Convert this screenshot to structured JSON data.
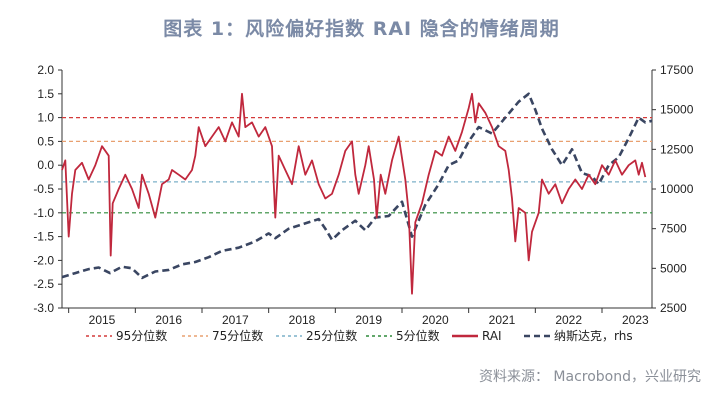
{
  "title": "图表 1：风险偏好指数 RAI 隐含的情绪周期",
  "source": "资料来源： Macrobond，兴业研究",
  "colors": {
    "rai": "#c0283d",
    "nasdaq": "#3a4662",
    "p95": "#d43a3a",
    "p75": "#e8a070",
    "p25": "#7cb0c8",
    "p5": "#2f8a3a",
    "axis": "#333333"
  },
  "chart_data": {
    "type": "line",
    "x_labels": [
      "2015",
      "2016",
      "2017",
      "2018",
      "2019",
      "2020",
      "2021",
      "2022",
      "2023"
    ],
    "x_range": [
      2014.9,
      2023.75
    ],
    "y_left": {
      "ticks": [
        "2.0",
        "1.5",
        "1.0",
        "0.5",
        "0.0",
        "-0.5",
        "-1.0",
        "-1.5",
        "-2.0",
        "-2.5",
        "-3.0"
      ],
      "range": [
        -3.0,
        2.0
      ]
    },
    "y_right": {
      "ticks": [
        "17500",
        "15000",
        "12500",
        "10000",
        "7500",
        "5000",
        "2500"
      ],
      "range": [
        2500,
        17500
      ]
    },
    "reference_lines": [
      {
        "name": "95分位数",
        "value": 1.0,
        "color_key": "p95"
      },
      {
        "name": "75分位数",
        "value": 0.5,
        "color_key": "p75"
      },
      {
        "name": "25分位数",
        "value": -0.35,
        "color_key": "p25"
      },
      {
        "name": "5分位数",
        "value": -1.0,
        "color_key": "p5"
      }
    ],
    "series": [
      {
        "name": "RAI",
        "axis": "left",
        "points": [
          [
            2014.9,
            -0.1
          ],
          [
            2014.95,
            0.1
          ],
          [
            2015.0,
            -1.5
          ],
          [
            2015.05,
            -0.6
          ],
          [
            2015.1,
            -0.1
          ],
          [
            2015.2,
            0.05
          ],
          [
            2015.3,
            -0.3
          ],
          [
            2015.4,
            0.0
          ],
          [
            2015.5,
            0.4
          ],
          [
            2015.6,
            0.2
          ],
          [
            2015.63,
            -1.9
          ],
          [
            2015.66,
            -0.8
          ],
          [
            2015.75,
            -0.5
          ],
          [
            2015.85,
            -0.2
          ],
          [
            2015.95,
            -0.5
          ],
          [
            2016.05,
            -0.9
          ],
          [
            2016.1,
            -0.2
          ],
          [
            2016.2,
            -0.6
          ],
          [
            2016.3,
            -1.1
          ],
          [
            2016.4,
            -0.4
          ],
          [
            2016.5,
            -0.3
          ],
          [
            2016.55,
            -0.1
          ],
          [
            2016.65,
            -0.2
          ],
          [
            2016.75,
            -0.3
          ],
          [
            2016.85,
            -0.1
          ],
          [
            2016.9,
            0.2
          ],
          [
            2016.95,
            0.8
          ],
          [
            2017.05,
            0.4
          ],
          [
            2017.15,
            0.6
          ],
          [
            2017.25,
            0.8
          ],
          [
            2017.35,
            0.5
          ],
          [
            2017.45,
            0.9
          ],
          [
            2017.55,
            0.6
          ],
          [
            2017.6,
            1.5
          ],
          [
            2017.65,
            0.8
          ],
          [
            2017.75,
            0.9
          ],
          [
            2017.85,
            0.6
          ],
          [
            2017.95,
            0.8
          ],
          [
            2018.05,
            0.4
          ],
          [
            2018.1,
            -1.1
          ],
          [
            2018.15,
            0.2
          ],
          [
            2018.25,
            -0.1
          ],
          [
            2018.35,
            -0.4
          ],
          [
            2018.45,
            0.4
          ],
          [
            2018.55,
            -0.2
          ],
          [
            2018.65,
            0.1
          ],
          [
            2018.75,
            -0.4
          ],
          [
            2018.85,
            -0.7
          ],
          [
            2018.95,
            -0.6
          ],
          [
            2019.05,
            -0.2
          ],
          [
            2019.15,
            0.3
          ],
          [
            2019.25,
            0.5
          ],
          [
            2019.3,
            -0.2
          ],
          [
            2019.35,
            -0.6
          ],
          [
            2019.45,
            0.0
          ],
          [
            2019.5,
            0.4
          ],
          [
            2019.58,
            -0.3
          ],
          [
            2019.62,
            -1.1
          ],
          [
            2019.68,
            -0.2
          ],
          [
            2019.75,
            -0.6
          ],
          [
            2019.85,
            0.1
          ],
          [
            2019.95,
            0.6
          ],
          [
            2020.05,
            -0.3
          ],
          [
            2020.1,
            -1.0
          ],
          [
            2020.15,
            -2.7
          ],
          [
            2020.2,
            -1.2
          ],
          [
            2020.3,
            -0.8
          ],
          [
            2020.4,
            -0.2
          ],
          [
            2020.5,
            0.3
          ],
          [
            2020.6,
            0.2
          ],
          [
            2020.7,
            0.6
          ],
          [
            2020.8,
            0.3
          ],
          [
            2020.9,
            0.7
          ],
          [
            2021.0,
            1.2
          ],
          [
            2021.05,
            1.5
          ],
          [
            2021.1,
            0.9
          ],
          [
            2021.15,
            1.3
          ],
          [
            2021.25,
            1.1
          ],
          [
            2021.35,
            0.8
          ],
          [
            2021.45,
            0.4
          ],
          [
            2021.55,
            0.3
          ],
          [
            2021.6,
            -0.1
          ],
          [
            2021.65,
            -0.7
          ],
          [
            2021.7,
            -1.6
          ],
          [
            2021.75,
            -0.9
          ],
          [
            2021.85,
            -1.0
          ],
          [
            2021.9,
            -2.0
          ],
          [
            2021.95,
            -1.4
          ],
          [
            2022.05,
            -1.0
          ],
          [
            2022.1,
            -0.3
          ],
          [
            2022.2,
            -0.6
          ],
          [
            2022.3,
            -0.4
          ],
          [
            2022.4,
            -0.8
          ],
          [
            2022.5,
            -0.5
          ],
          [
            2022.6,
            -0.3
          ],
          [
            2022.7,
            -0.5
          ],
          [
            2022.8,
            -0.2
          ],
          [
            2022.9,
            -0.4
          ],
          [
            2023.0,
            0.0
          ],
          [
            2023.1,
            -0.2
          ],
          [
            2023.2,
            0.1
          ],
          [
            2023.3,
            -0.2
          ],
          [
            2023.4,
            0.0
          ],
          [
            2023.5,
            0.1
          ],
          [
            2023.55,
            -0.2
          ],
          [
            2023.6,
            0.05
          ],
          [
            2023.65,
            -0.25
          ]
        ]
      },
      {
        "name": "纳斯达克，rhs",
        "axis": "right",
        "points": [
          [
            2014.9,
            4450
          ],
          [
            2015.1,
            4700
          ],
          [
            2015.3,
            4950
          ],
          [
            2015.45,
            5050
          ],
          [
            2015.62,
            4700
          ],
          [
            2015.8,
            5100
          ],
          [
            2015.95,
            5000
          ],
          [
            2016.1,
            4400
          ],
          [
            2016.3,
            4800
          ],
          [
            2016.5,
            4900
          ],
          [
            2016.7,
            5250
          ],
          [
            2016.9,
            5400
          ],
          [
            2017.1,
            5700
          ],
          [
            2017.3,
            6100
          ],
          [
            2017.55,
            6300
          ],
          [
            2017.8,
            6700
          ],
          [
            2018.0,
            7200
          ],
          [
            2018.1,
            6900
          ],
          [
            2018.3,
            7500
          ],
          [
            2018.6,
            7900
          ],
          [
            2018.75,
            8100
          ],
          [
            2018.85,
            7500
          ],
          [
            2018.95,
            6800
          ],
          [
            2019.1,
            7400
          ],
          [
            2019.3,
            8000
          ],
          [
            2019.45,
            7400
          ],
          [
            2019.6,
            8200
          ],
          [
            2019.8,
            8300
          ],
          [
            2020.0,
            9200
          ],
          [
            2020.15,
            7000
          ],
          [
            2020.35,
            9000
          ],
          [
            2020.55,
            10300
          ],
          [
            2020.7,
            11500
          ],
          [
            2020.85,
            11800
          ],
          [
            2021.0,
            13000
          ],
          [
            2021.15,
            13900
          ],
          [
            2021.35,
            13500
          ],
          [
            2021.55,
            14500
          ],
          [
            2021.75,
            15500
          ],
          [
            2021.9,
            16000
          ],
          [
            2022.0,
            15000
          ],
          [
            2022.1,
            13800
          ],
          [
            2022.25,
            12500
          ],
          [
            2022.4,
            11500
          ],
          [
            2022.55,
            12500
          ],
          [
            2022.7,
            11000
          ],
          [
            2022.85,
            10800
          ],
          [
            2022.95,
            10300
          ],
          [
            2023.1,
            11500
          ],
          [
            2023.25,
            12000
          ],
          [
            2023.4,
            13200
          ],
          [
            2023.55,
            14500
          ],
          [
            2023.65,
            14200
          ],
          [
            2023.75,
            14300
          ]
        ]
      }
    ],
    "legend": [
      {
        "label": "95分位数",
        "style": "dashed",
        "color_key": "p95"
      },
      {
        "label": "75分位数",
        "style": "dashed",
        "color_key": "p75"
      },
      {
        "label": "25分位数",
        "style": "dashed",
        "color_key": "p25"
      },
      {
        "label": "5分位数",
        "style": "dashed",
        "color_key": "p5"
      },
      {
        "label": "RAI",
        "style": "solid",
        "color_key": "rai"
      },
      {
        "label": "纳斯达克，rhs",
        "style": "dashed-thick",
        "color_key": "nasdaq"
      }
    ],
    "legend_position": "bottom"
  }
}
